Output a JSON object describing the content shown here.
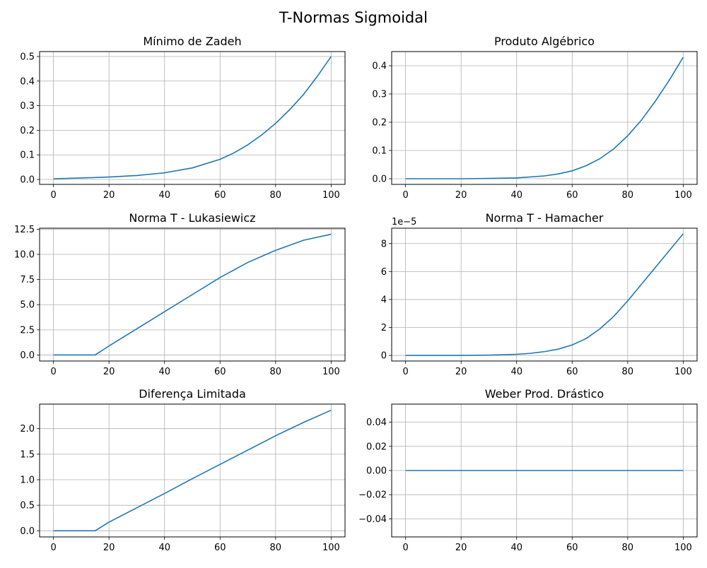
{
  "figure": {
    "suptitle": "T-Normas Sigmoidal"
  },
  "chart_data": [
    {
      "type": "line",
      "title": "Mínimo de Zadeh",
      "xlabel": "",
      "ylabel": "",
      "grid": true,
      "xlim": [
        -5,
        105
      ],
      "ylim": [
        -0.02,
        0.52
      ],
      "xticks": [
        0,
        20,
        40,
        60,
        80,
        100
      ],
      "yticks": [
        0.0,
        0.1,
        0.2,
        0.3,
        0.4,
        0.5
      ],
      "xtick_labels": [
        "0",
        "20",
        "40",
        "60",
        "80",
        "100"
      ],
      "ytick_labels": [
        "0.0",
        "0.1",
        "0.2",
        "0.3",
        "0.4",
        "0.5"
      ],
      "offset_label": "",
      "series": [
        {
          "x": [
            0,
            10,
            20,
            30,
            40,
            50,
            60,
            65,
            70,
            75,
            80,
            85,
            90,
            95,
            100
          ],
          "y": [
            0.003,
            0.006,
            0.01,
            0.016,
            0.027,
            0.047,
            0.082,
            0.108,
            0.141,
            0.181,
            0.228,
            0.283,
            0.345,
            0.419,
            0.5
          ]
        }
      ]
    },
    {
      "type": "line",
      "title": "Produto Algébrico",
      "xlabel": "",
      "ylabel": "",
      "grid": true,
      "xlim": [
        -5,
        105
      ],
      "ylim": [
        -0.02,
        0.45
      ],
      "xticks": [
        0,
        20,
        40,
        60,
        80,
        100
      ],
      "yticks": [
        0.0,
        0.1,
        0.2,
        0.3,
        0.4
      ],
      "xtick_labels": [
        "0",
        "20",
        "40",
        "60",
        "80",
        "100"
      ],
      "ytick_labels": [
        "0.0",
        "0.1",
        "0.2",
        "0.3",
        "0.4"
      ],
      "offset_label": "",
      "series": [
        {
          "x": [
            0,
            10,
            20,
            30,
            40,
            50,
            55,
            60,
            65,
            70,
            75,
            80,
            85,
            90,
            95,
            100
          ],
          "y": [
            0.0,
            0.0,
            0.0,
            0.001,
            0.003,
            0.01,
            0.017,
            0.028,
            0.046,
            0.071,
            0.106,
            0.152,
            0.208,
            0.275,
            0.349,
            0.43
          ]
        }
      ]
    },
    {
      "type": "line",
      "title": "Norma T - Lukasiewicz",
      "xlabel": "",
      "ylabel": "",
      "grid": true,
      "xlim": [
        -5,
        105
      ],
      "ylim": [
        -0.6,
        12.6
      ],
      "xticks": [
        0,
        20,
        40,
        60,
        80,
        100
      ],
      "yticks": [
        0.0,
        2.5,
        5.0,
        7.5,
        10.0,
        12.5
      ],
      "xtick_labels": [
        "0",
        "20",
        "40",
        "60",
        "80",
        "100"
      ],
      "ytick_labels": [
        "0.0",
        "2.5",
        "5.0",
        "7.5",
        "10.0",
        "12.5"
      ],
      "offset_label": "",
      "series": [
        {
          "x": [
            0,
            10,
            15,
            20,
            30,
            40,
            50,
            60,
            70,
            80,
            90,
            100
          ],
          "y": [
            0.0,
            0.0,
            0.0,
            0.9,
            2.6,
            4.3,
            6.0,
            7.7,
            9.2,
            10.4,
            11.4,
            12.0
          ]
        }
      ]
    },
    {
      "type": "line",
      "title": "Norma T - Hamacher",
      "xlabel": "",
      "ylabel": "",
      "grid": true,
      "xlim": [
        -5,
        105
      ],
      "ylim": [
        -0.4,
        9.1
      ],
      "xticks": [
        0,
        20,
        40,
        60,
        80,
        100
      ],
      "yticks": [
        0,
        2,
        4,
        6,
        8
      ],
      "xtick_labels": [
        "0",
        "20",
        "40",
        "60",
        "80",
        "100"
      ],
      "ytick_labels": [
        "0",
        "2",
        "4",
        "6",
        "8"
      ],
      "offset_label": "1e−5",
      "series": [
        {
          "x": [
            0,
            10,
            20,
            30,
            40,
            45,
            50,
            55,
            60,
            65,
            70,
            75,
            80,
            85,
            90,
            95,
            100
          ],
          "y": [
            0.0,
            0.0,
            0.0,
            0.02,
            0.08,
            0.15,
            0.27,
            0.45,
            0.75,
            1.2,
            1.9,
            2.8,
            3.9,
            5.1,
            6.3,
            7.5,
            8.7
          ]
        }
      ]
    },
    {
      "type": "line",
      "title": "Diferença Limitada",
      "xlabel": "",
      "ylabel": "",
      "grid": true,
      "xlim": [
        -5,
        105
      ],
      "ylim": [
        -0.12,
        2.48
      ],
      "xticks": [
        0,
        20,
        40,
        60,
        80,
        100
      ],
      "yticks": [
        0.0,
        0.5,
        1.0,
        1.5,
        2.0
      ],
      "xtick_labels": [
        "0",
        "20",
        "40",
        "60",
        "80",
        "100"
      ],
      "ytick_labels": [
        "0.0",
        "0.5",
        "1.0",
        "1.5",
        "2.0"
      ],
      "offset_label": "",
      "series": [
        {
          "x": [
            0,
            10,
            15,
            20,
            30,
            40,
            50,
            60,
            70,
            80,
            90,
            100
          ],
          "y": [
            0.0,
            0.0,
            0.0,
            0.17,
            0.45,
            0.73,
            1.02,
            1.3,
            1.58,
            1.86,
            2.12,
            2.36
          ]
        }
      ]
    },
    {
      "type": "line",
      "title": "Weber Prod. Drástico",
      "xlabel": "",
      "ylabel": "",
      "grid": true,
      "xlim": [
        -5,
        105
      ],
      "ylim": [
        -0.055,
        0.055
      ],
      "xticks": [
        0,
        20,
        40,
        60,
        80,
        100
      ],
      "yticks": [
        -0.04,
        -0.02,
        0.0,
        0.02,
        0.04
      ],
      "xtick_labels": [
        "0",
        "20",
        "40",
        "60",
        "80",
        "100"
      ],
      "ytick_labels": [
        "−0.04",
        "−0.02",
        "0.00",
        "0.02",
        "0.04"
      ],
      "offset_label": "",
      "series": [
        {
          "x": [
            0,
            100
          ],
          "y": [
            0.0,
            0.0
          ]
        }
      ]
    }
  ]
}
